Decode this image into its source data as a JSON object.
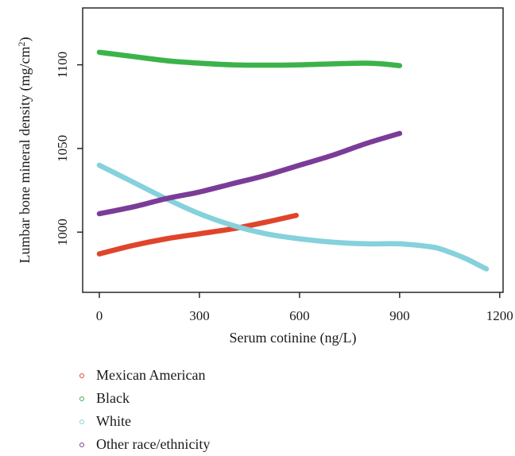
{
  "chart_data": {
    "type": "line",
    "title": "",
    "xlabel": "Serum cotinine (ng/L)",
    "ylabel": "Lumbar bone mineral density (mg/cm",
    "ylabel_sup": "2",
    "ylabel_end": ")",
    "xlim": [
      -50,
      1210
    ],
    "ylim": [
      964,
      1134
    ],
    "xticks": [
      0,
      300,
      600,
      900,
      1200
    ],
    "yticks": [
      1000,
      1050,
      1100
    ],
    "grid": false,
    "legend_position": "bottom-left",
    "series": [
      {
        "name": "Mexican American",
        "color": "#e0442b",
        "x": [
          0,
          100,
          200,
          300,
          400,
          500,
          590
        ],
        "y": [
          987,
          992,
          996,
          999,
          1002,
          1006,
          1010
        ]
      },
      {
        "name": "Black",
        "color": "#3bb34a",
        "x": [
          0,
          100,
          200,
          300,
          400,
          500,
          600,
          700,
          800,
          850,
          900
        ],
        "y": [
          1107.5,
          1105,
          1102.5,
          1101,
          1100,
          1099.8,
          1100,
          1100.6,
          1101,
          1100.5,
          1099.5
        ]
      },
      {
        "name": "White",
        "color": "#85d1dc",
        "x": [
          0,
          100,
          200,
          300,
          400,
          500,
          600,
          700,
          800,
          900,
          1000,
          1050,
          1100,
          1140,
          1160
        ],
        "y": [
          1040,
          1030,
          1020,
          1011,
          1004,
          999,
          996,
          994,
          993,
          993,
          991,
          988,
          984,
          980,
          978
        ]
      },
      {
        "name": "Other race/ethnicity",
        "color": "#7b3c98",
        "x": [
          0,
          100,
          200,
          300,
          400,
          500,
          600,
          700,
          800,
          900
        ],
        "y": [
          1011,
          1015,
          1020,
          1024,
          1029,
          1034,
          1040,
          1046,
          1053,
          1059
        ]
      }
    ]
  }
}
